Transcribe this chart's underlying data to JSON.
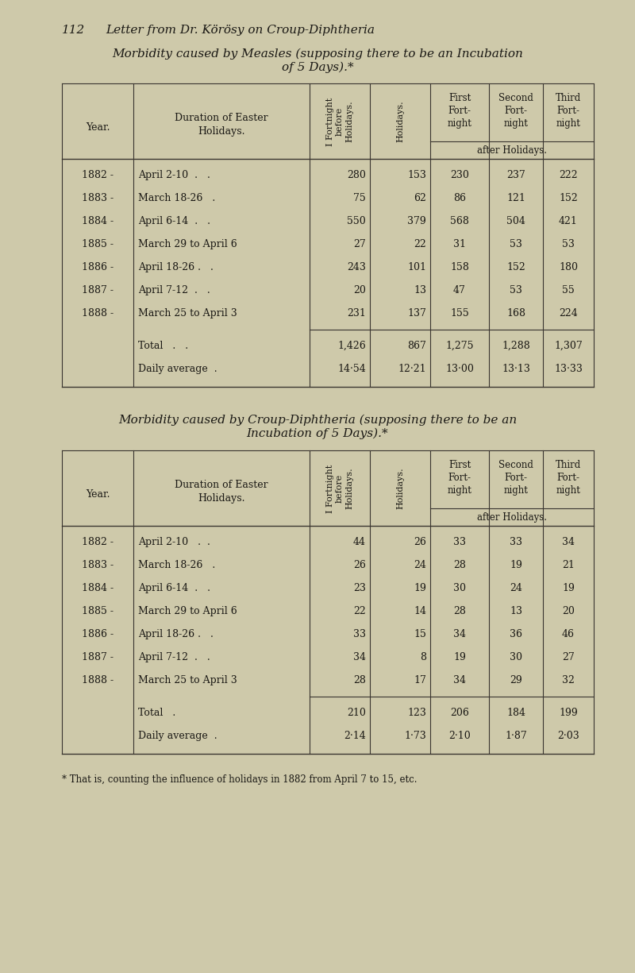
{
  "bg_color": "#cec9aa",
  "text_color": "#1a1814",
  "line_color": "#3a3530",
  "page_header_num": "112",
  "page_header_text": "Letter from Dr. Körösy on Croup-Diphtheria",
  "table1_title_line1": "Morbidity caused by Measles (supposing there to be an Incubation",
  "table1_title_line2": "of 5 Days).*",
  "table2_title_line1": "Morbidity caused by Croup-Diphtheria (supposing there to be an",
  "table2_title_line2": "Incubation of 5 Days).*",
  "col_header_0": "Year.",
  "col_header_1": "Duration of Easter\nHolidays.",
  "col_header_2": "I Fortnight\nbefore\nHolidays.",
  "col_header_3": "Holidays.",
  "col_header_4": "First\nFort-\nnight",
  "col_header_5": "Second\nFort-\nnight",
  "col_header_6": "Third\nFort-\nnight",
  "col_subheader": "after Holidays.",
  "table1_rows": [
    [
      "1882 -",
      "April 2-10  .   .",
      "280",
      "153",
      "230",
      "237",
      "222"
    ],
    [
      "1883 -",
      "March 18-26   .",
      "75",
      "62",
      "86",
      "121",
      "152"
    ],
    [
      "1884 -",
      "April 6-14  .   .",
      "550",
      "379",
      "568",
      "504",
      "421"
    ],
    [
      "1885 -",
      "March 29 to April 6",
      "27",
      "22",
      "31",
      "53",
      "53"
    ],
    [
      "1886 -",
      "April 18-26 .   .",
      "243",
      "101",
      "158",
      "152",
      "180"
    ],
    [
      "1887 -",
      "April 7-12  .   .",
      "20",
      "13",
      "47",
      "53",
      "55"
    ],
    [
      "1888 -",
      "March 25 to April 3",
      "231",
      "137",
      "155",
      "168",
      "224"
    ]
  ],
  "table1_total": [
    "Total   .   .",
    "1,426",
    "867",
    "1,275",
    "1,288",
    "1,307"
  ],
  "table1_avg": [
    "Daily average  .",
    "14·54",
    "12·21",
    "13·00",
    "13·13",
    "13·33"
  ],
  "table2_rows": [
    [
      "1882 -",
      "April 2-10   .  .",
      "44",
      "26",
      "33",
      "33",
      "34"
    ],
    [
      "1883 -",
      "March 18-26   .",
      "26",
      "24",
      "28",
      "19",
      "21"
    ],
    [
      "1884 -",
      "April 6-14  .   .",
      "23",
      "19",
      "30",
      "24",
      "19"
    ],
    [
      "1885 -",
      "March 29 to April 6",
      "22",
      "14",
      "28",
      "13",
      "20"
    ],
    [
      "1886 -",
      "April 18-26 .   .",
      "33",
      "15",
      "34",
      "36",
      "46"
    ],
    [
      "1887 -",
      "April 7-12  .   .",
      "34",
      "8",
      "19",
      "30",
      "27"
    ],
    [
      "1888 -",
      "March 25 to April 3",
      "28",
      "17",
      "34",
      "29",
      "32"
    ]
  ],
  "table2_total": [
    "Total   .",
    "210",
    "123",
    "206",
    "184",
    "199"
  ],
  "table2_avg": [
    "Daily average  .",
    "2·14",
    "1·73",
    "2·10",
    "1·87",
    "2·03"
  ],
  "footnote": "* That is, counting the influence of holidays in 1882 from April 7 to 15, etc."
}
